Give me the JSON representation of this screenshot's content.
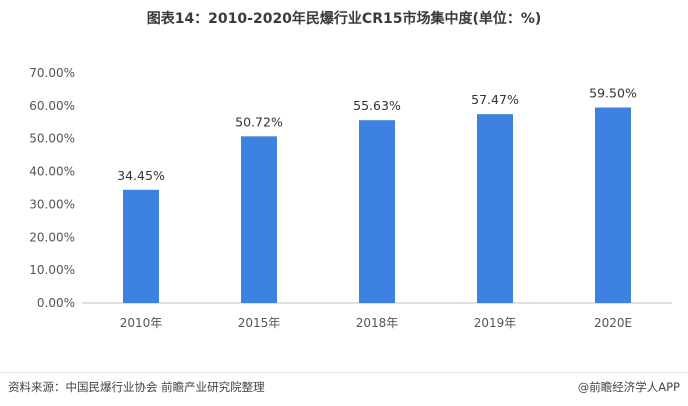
{
  "chart_data": {
    "type": "bar",
    "title": "图表14：2010-2020年民爆行业CR15市场集中度(单位：%)",
    "categories": [
      "2010年",
      "2015年",
      "2018年",
      "2019年",
      "2020E"
    ],
    "values": [
      34.45,
      50.72,
      55.63,
      57.47,
      59.5
    ],
    "value_labels": [
      "34.45%",
      "50.72%",
      "55.63%",
      "57.47%",
      "59.50%"
    ],
    "yticks": [
      "0.00%",
      "10.00%",
      "20.00%",
      "30.00%",
      "40.00%",
      "50.00%",
      "60.00%",
      "70.00%"
    ],
    "ylim": [
      0,
      70
    ],
    "grid": false,
    "bar_color": "#3d82e0"
  },
  "footer": {
    "source": "资料来源：中国民爆行业协会 前瞻产业研究院整理",
    "brand": "@前瞻经济学人APP"
  }
}
